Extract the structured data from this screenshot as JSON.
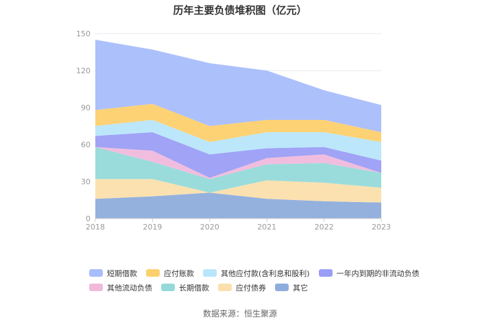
{
  "chart_data": {
    "type": "area",
    "stacked": true,
    "title": "历年主要负债堆积图（亿元）",
    "x": [
      "2018",
      "2019",
      "2020",
      "2021",
      "2022",
      "2023"
    ],
    "ylim": [
      0,
      150
    ],
    "yticks": [
      0,
      30,
      60,
      90,
      120,
      150
    ],
    "grid": true,
    "legend_position": "bottom",
    "series": [
      {
        "name": "其它",
        "color": "#8eaddc",
        "values": [
          16,
          18,
          21,
          16,
          14,
          13
        ]
      },
      {
        "name": "应付债券",
        "color": "#fbdfac",
        "values": [
          16,
          14,
          0,
          15,
          15,
          12
        ]
      },
      {
        "name": "长期借款",
        "color": "#95dad9",
        "values": [
          26,
          14,
          11,
          13,
          16,
          12
        ]
      },
      {
        "name": "其他流动负债",
        "color": "#f0b9dc",
        "values": [
          0,
          9,
          1,
          5,
          7,
          0
        ]
      },
      {
        "name": "一年内到期的非流动负债",
        "color": "#9b9ef5",
        "values": [
          9,
          15,
          19,
          8,
          6,
          10
        ]
      },
      {
        "name": "其他应付款(含利息和股利)",
        "color": "#b8e6fb",
        "values": [
          8,
          10,
          10,
          13,
          12,
          15
        ]
      },
      {
        "name": "应付账款",
        "color": "#fdd06e",
        "values": [
          13,
          13,
          13,
          10,
          10,
          8
        ]
      },
      {
        "name": "短期借款",
        "color": "#a8bdfc",
        "values": [
          57,
          44,
          51,
          40,
          24,
          22
        ]
      }
    ],
    "legend_rows": [
      [
        "短期借款",
        "应付账款",
        "其他应付款(含利息和股利)",
        "一年内到期的非流动负债"
      ],
      [
        "其他流动负债",
        "长期借款",
        "应付债券",
        "其它"
      ]
    ]
  },
  "source_label": "数据来源：恒生聚源"
}
